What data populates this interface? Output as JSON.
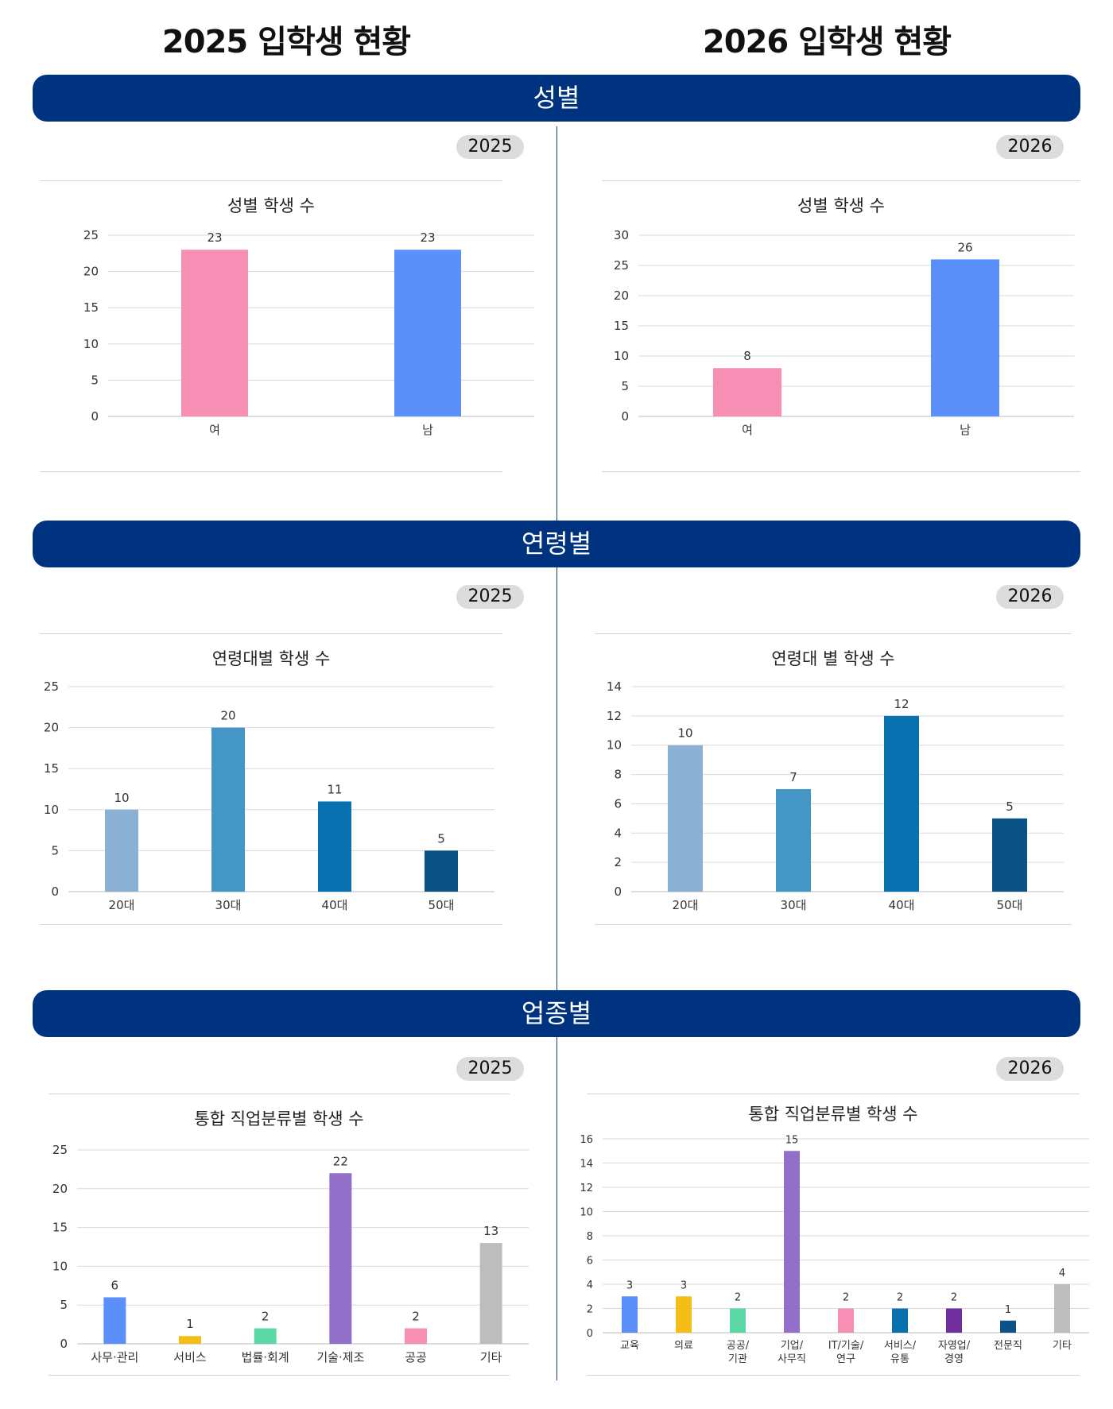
{
  "headers": {
    "left_title": "2025 입학생 현황",
    "right_title": "2026 입학생 현황"
  },
  "sections": {
    "gender": "성별",
    "age": "연령별",
    "industry": "업종별"
  },
  "year_badges": {
    "y2025": "2025",
    "y2026": "2026"
  },
  "chart_data": [
    {
      "id": "gender-2025",
      "type": "bar",
      "title": "성별 학생 수",
      "categories": [
        "여",
        "남"
      ],
      "values": [
        23,
        23
      ],
      "colors": [
        "#f68fb3",
        "#5b8ff9"
      ],
      "ylim": [
        0,
        25
      ],
      "yticks": [
        0,
        5,
        10,
        15,
        20,
        25
      ],
      "grid": true
    },
    {
      "id": "gender-2026",
      "type": "bar",
      "title": "성별 학생 수",
      "categories": [
        "여",
        "남"
      ],
      "values": [
        8,
        26
      ],
      "colors": [
        "#f68fb3",
        "#5b8ff9"
      ],
      "ylim": [
        0,
        30
      ],
      "yticks": [
        0,
        5,
        10,
        15,
        20,
        25,
        30
      ],
      "grid": true
    },
    {
      "id": "age-2025",
      "type": "bar",
      "title": "연령대별 학생 수",
      "categories": [
        "20대",
        "30대",
        "40대",
        "50대"
      ],
      "values": [
        10,
        20,
        11,
        5
      ],
      "colors": [
        "#8ab0d4",
        "#4396c6",
        "#0871b0",
        "#0b5286"
      ],
      "ylim": [
        0,
        25
      ],
      "yticks": [
        0,
        5,
        10,
        15,
        20,
        25
      ],
      "grid": true
    },
    {
      "id": "age-2026",
      "type": "bar",
      "title": "연령대 별 학생 수",
      "categories": [
        "20대",
        "30대",
        "40대",
        "50대"
      ],
      "values": [
        10,
        7,
        12,
        5
      ],
      "colors": [
        "#8ab0d4",
        "#4396c6",
        "#0871b0",
        "#0b5286"
      ],
      "ylim": [
        0,
        14
      ],
      "yticks": [
        0,
        2,
        4,
        6,
        8,
        10,
        12,
        14
      ],
      "grid": true
    },
    {
      "id": "industry-2025",
      "type": "bar",
      "title": "통합 직업분류별 학생 수",
      "categories": [
        "사무·관리",
        "서비스",
        "법률·회계",
        "기술·제조",
        "공공",
        "기타"
      ],
      "values": [
        6,
        1,
        2,
        22,
        2,
        13
      ],
      "colors": [
        "#5b8ff9",
        "#f6bd16",
        "#5ad8a6",
        "#9270ca",
        "#f68fb3",
        "#bdbdbd"
      ],
      "ylim": [
        0,
        25
      ],
      "yticks": [
        0,
        5,
        10,
        15,
        20,
        25
      ],
      "grid": true
    },
    {
      "id": "industry-2026",
      "type": "bar",
      "title": "통합 직업분류별 학생 수",
      "categories": [
        "교육",
        "의료",
        "공공/\n기관",
        "기업/\n사무직",
        "IT/기술/\n연구",
        "서비스/\n유통",
        "자영업/\n경영",
        "전문직",
        "기타"
      ],
      "values": [
        3,
        3,
        2,
        15,
        2,
        2,
        2,
        1,
        4
      ],
      "colors": [
        "#5b8ff9",
        "#f6bd16",
        "#5ad8a6",
        "#9270ca",
        "#f68fb3",
        "#0871b0",
        "#7030a0",
        "#0b5286",
        "#bdbdbd"
      ],
      "ylim": [
        0,
        16
      ],
      "yticks": [
        0,
        2,
        4,
        6,
        8,
        10,
        12,
        14,
        16
      ],
      "grid": true
    }
  ]
}
